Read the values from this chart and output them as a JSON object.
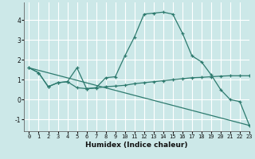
{
  "bg_color": "#cce8e8",
  "grid_color": "#ffffff",
  "line_color": "#2d7a6e",
  "xlabel": "Humidex (Indice chaleur)",
  "xlim": [
    -0.5,
    23
  ],
  "ylim": [
    -1.6,
    4.9
  ],
  "yticks": [
    -1,
    0,
    1,
    2,
    3,
    4
  ],
  "xticks": [
    0,
    1,
    2,
    3,
    4,
    5,
    6,
    7,
    8,
    9,
    10,
    11,
    12,
    13,
    14,
    15,
    16,
    17,
    18,
    19,
    20,
    21,
    22,
    23
  ],
  "series1_x": [
    0,
    1,
    2,
    3,
    4,
    5,
    6,
    7,
    8,
    9,
    10,
    11,
    12,
    13,
    14,
    15,
    16,
    17,
    18,
    19,
    20,
    21,
    22,
    23
  ],
  "series1_y": [
    1.6,
    1.35,
    0.65,
    0.85,
    0.9,
    1.6,
    0.55,
    0.6,
    1.1,
    1.15,
    2.2,
    3.15,
    4.3,
    4.35,
    4.4,
    4.3,
    3.35,
    2.2,
    1.9,
    1.25,
    0.5,
    0.0,
    -0.1,
    -1.3
  ],
  "series2_x": [
    0,
    1,
    2,
    3,
    4,
    5,
    6,
    7,
    8,
    9,
    10,
    11,
    12,
    13,
    14,
    15,
    16,
    17,
    18,
    19,
    20,
    21,
    22,
    23
  ],
  "series2_y": [
    1.6,
    1.35,
    0.65,
    0.85,
    0.9,
    0.6,
    0.55,
    0.58,
    0.65,
    0.68,
    0.72,
    0.8,
    0.85,
    0.9,
    0.95,
    1.0,
    1.05,
    1.1,
    1.12,
    1.15,
    1.18,
    1.2,
    1.2,
    1.2
  ],
  "series3_x": [
    0,
    23
  ],
  "series3_y": [
    1.6,
    -1.3
  ]
}
